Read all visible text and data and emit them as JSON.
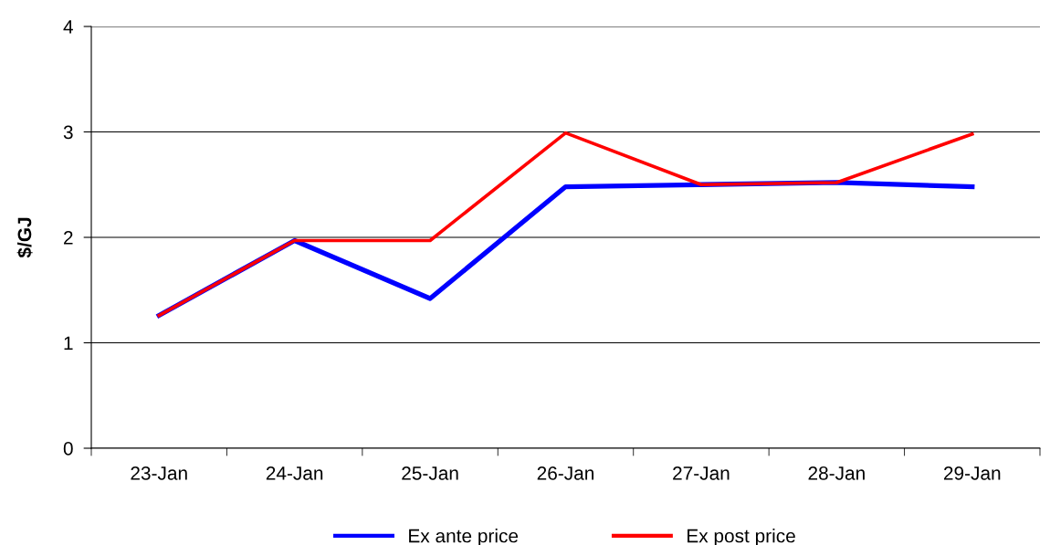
{
  "chart_data": {
    "type": "line",
    "ylabel": "$/GJ",
    "categories": [
      "23-Jan",
      "24-Jan",
      "25-Jan",
      "26-Jan",
      "27-Jan",
      "28-Jan",
      "29-Jan"
    ],
    "series": [
      {
        "name": "Ex ante price",
        "color": "#0000ff",
        "values": [
          1.26,
          1.97,
          1.42,
          2.48,
          2.5,
          2.52,
          2.48
        ]
      },
      {
        "name": "Ex post price",
        "color": "#ff0000",
        "values": [
          1.26,
          1.97,
          1.97,
          2.99,
          2.5,
          2.52,
          2.98
        ]
      }
    ],
    "ylim": [
      0,
      4
    ],
    "yticks": [
      0,
      1,
      2,
      3,
      4
    ],
    "grid": "y",
    "legend": "bottom",
    "marker": "none",
    "line_style": "solid"
  }
}
